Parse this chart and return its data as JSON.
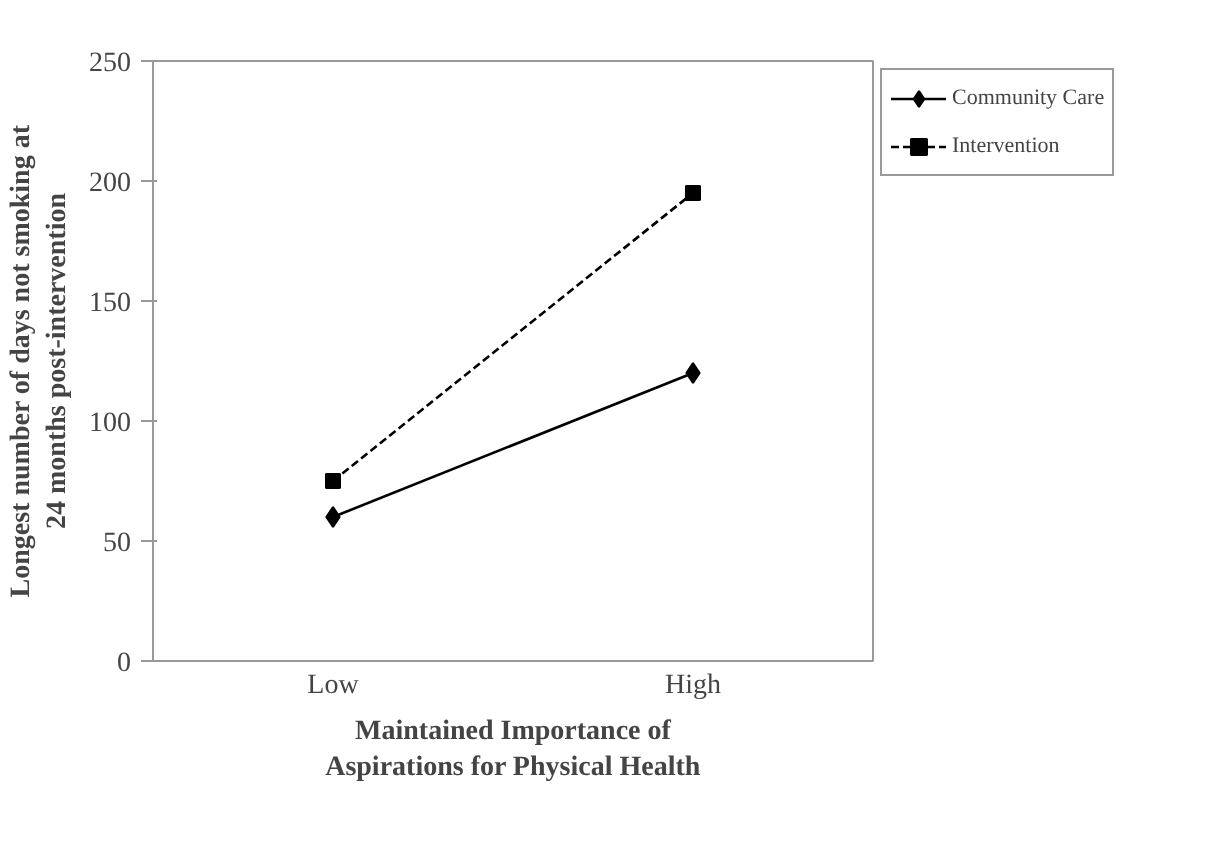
{
  "chart_data": {
    "type": "line",
    "xlabel": "Maintained Importance of Aspirations for Physical Health",
    "ylabel": "Longest number of days not smoking at 24 months post-intervention",
    "categories": [
      "Low",
      "High"
    ],
    "ylim": [
      0,
      250
    ],
    "yticks": [
      0,
      50,
      100,
      150,
      200,
      250
    ],
    "grid": false,
    "legend": "right",
    "series": [
      {
        "name": "Community Care",
        "color": "#000000",
        "values": [
          60,
          120
        ],
        "marker": "diamond",
        "line_style": "solid"
      },
      {
        "name": "Intervention",
        "color": "#000000",
        "values": [
          75,
          195
        ],
        "marker": "square",
        "line_style": "dashed"
      }
    ]
  }
}
